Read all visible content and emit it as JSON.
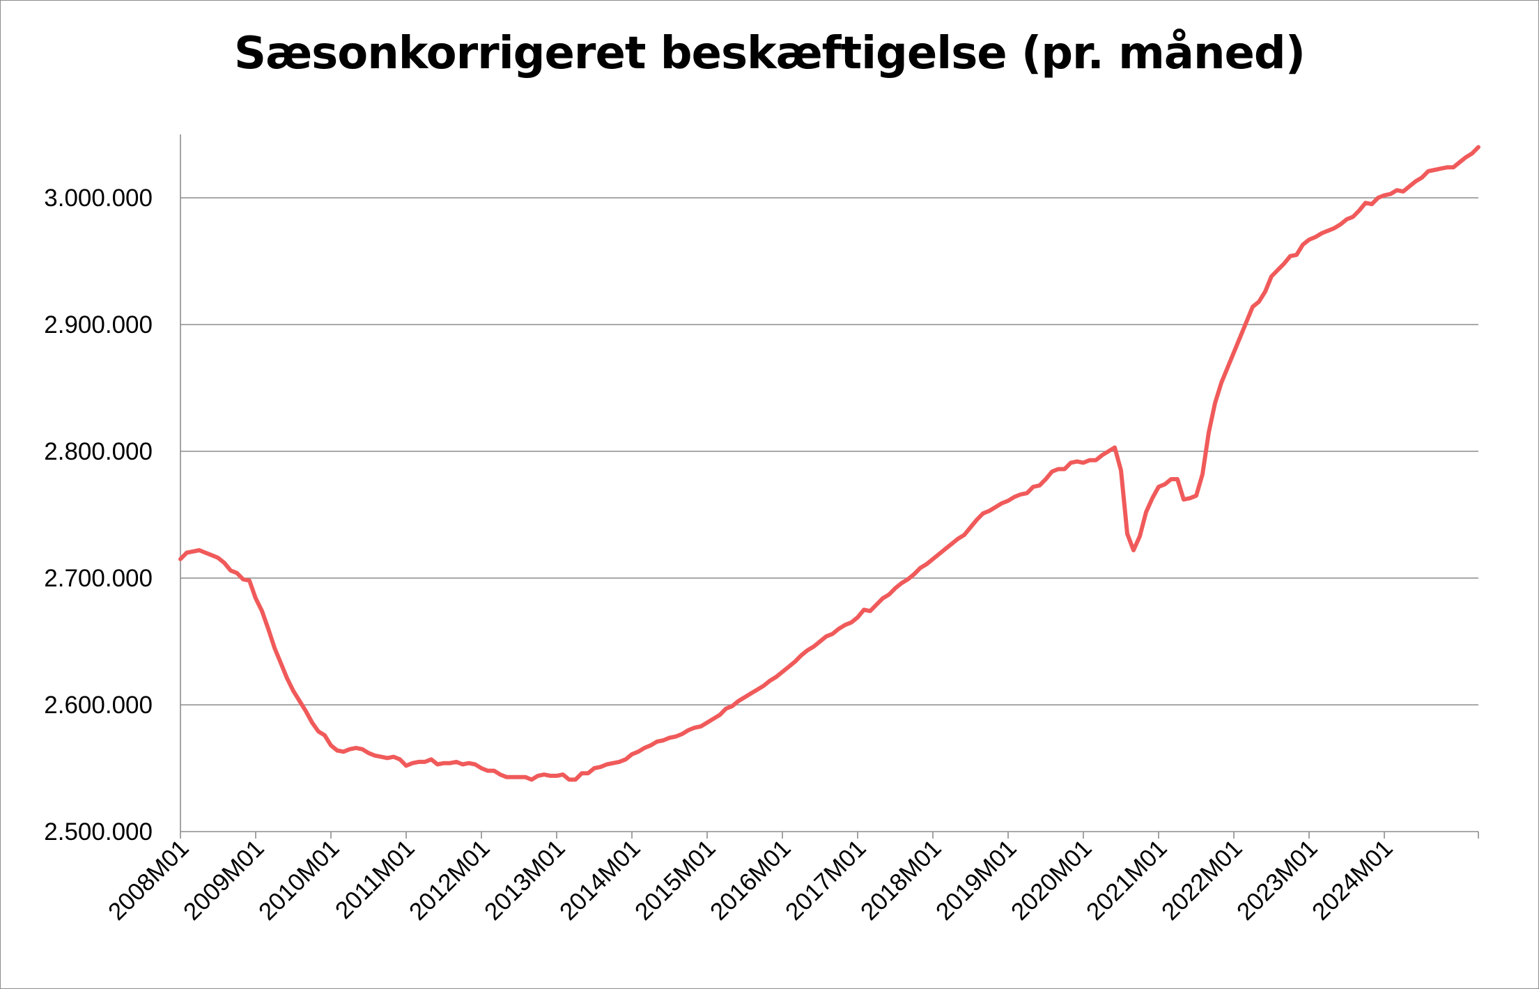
{
  "chart_data": {
    "type": "line",
    "title": "Sæsonkorrigeret beskæftigelse (pr. måned)",
    "xlabel": "",
    "ylabel": "",
    "ylim": [
      2500000,
      3050000
    ],
    "yticks": [
      2500000,
      2600000,
      2700000,
      2800000,
      2900000,
      3000000
    ],
    "ytick_labels": [
      "2.500.000",
      "2.600.000",
      "2.700.000",
      "2.800.000",
      "2.900.000",
      "3.000.000"
    ],
    "xtick_labels": [
      "2008M01",
      "2009M01",
      "2010M01",
      "2011M01",
      "2012M01",
      "2013M01",
      "2014M01",
      "2015M01",
      "2016M01",
      "2017M01",
      "2018M01",
      "2019M01",
      "2020M01",
      "2021M01",
      "2022M01",
      "2023M01",
      "2024M01"
    ],
    "grid": "horizontal",
    "legend": "none",
    "line_color": "#f05a5a",
    "series": [
      {
        "x_start": "2008M01",
        "frequency": "monthly",
        "values": [
          2715000,
          2720000,
          2721000,
          2722000,
          2720000,
          2718000,
          2716000,
          2712000,
          2706000,
          2704000,
          2699000,
          2698000,
          2684000,
          2674000,
          2660000,
          2645000,
          2633000,
          2621000,
          2611000,
          2603000,
          2595000,
          2586000,
          2579000,
          2576000,
          2568000,
          2564000,
          2563000,
          2565000,
          2566000,
          2565000,
          2562000,
          2560000,
          2559000,
          2558000,
          2559000,
          2557000,
          2552000,
          2554000,
          2555000,
          2555000,
          2557000,
          2553000,
          2554000,
          2554000,
          2555000,
          2553000,
          2554000,
          2553000,
          2550000,
          2548000,
          2548000,
          2545000,
          2543000,
          2543000,
          2543000,
          2543000,
          2541000,
          2544000,
          2545000,
          2544000,
          2544000,
          2545000,
          2541000,
          2541000,
          2546000,
          2546000,
          2550000,
          2551000,
          2553000,
          2554000,
          2555000,
          2557000,
          2561000,
          2563000,
          2566000,
          2568000,
          2571000,
          2572000,
          2574000,
          2575000,
          2577000,
          2580000,
          2582000,
          2583000,
          2586000,
          2589000,
          2592000,
          2597000,
          2599000,
          2603000,
          2606000,
          2609000,
          2612000,
          2615000,
          2619000,
          2622000,
          2626000,
          2630000,
          2634000,
          2639000,
          2643000,
          2646000,
          2650000,
          2654000,
          2656000,
          2660000,
          2663000,
          2665000,
          2669000,
          2675000,
          2674000,
          2679000,
          2684000,
          2687000,
          2692000,
          2696000,
          2699000,
          2703000,
          2708000,
          2711000,
          2715000,
          2719000,
          2723000,
          2727000,
          2731000,
          2734000,
          2740000,
          2746000,
          2751000,
          2753000,
          2756000,
          2759000,
          2761000,
          2764000,
          2766000,
          2767000,
          2772000,
          2773000,
          2778000,
          2784000,
          2786000,
          2786000,
          2791000,
          2792000,
          2791000,
          2793000,
          2793000,
          2797000,
          2800000,
          2803000,
          2785000,
          2735000,
          2722000,
          2733000,
          2752000,
          2763000,
          2772000,
          2774000,
          2778000,
          2778000,
          2762000,
          2763000,
          2765000,
          2782000,
          2815000,
          2838000,
          2854000,
          2866000,
          2878000,
          2890000,
          2902000,
          2914000,
          2918000,
          2926000,
          2938000,
          2943000,
          2948000,
          2954000,
          2955000,
          2963000,
          2967000,
          2969000,
          2972000,
          2974000,
          2976000,
          2979000,
          2983000,
          2985000,
          2990000,
          2996000,
          2995000,
          3000000,
          3002000,
          3003000,
          3006000,
          3005000,
          3009000,
          3013000,
          3016000,
          3021000,
          3022000,
          3023000,
          3024000,
          3024000,
          3028000,
          3032000,
          3035000,
          3040000
        ]
      }
    ]
  }
}
